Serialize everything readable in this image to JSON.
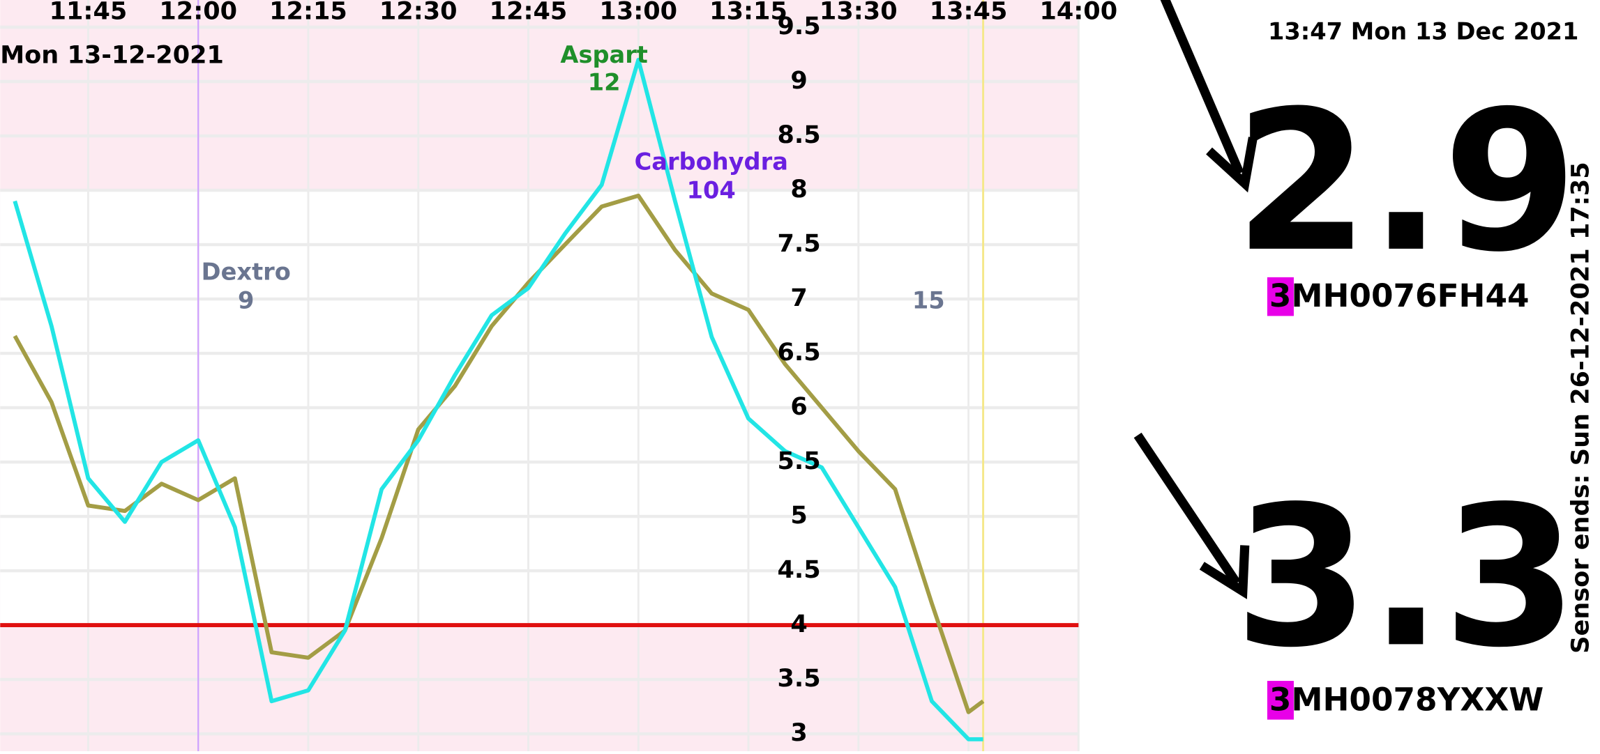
{
  "chart_data": {
    "type": "line",
    "date_label": "Mon 13-12-2021",
    "x": [
      "11:35",
      "11:40",
      "11:45",
      "11:50",
      "11:55",
      "12:00",
      "12:05",
      "12:10",
      "12:15",
      "12:20",
      "12:25",
      "12:30",
      "12:35",
      "12:40",
      "12:45",
      "12:50",
      "12:55",
      "13:00",
      "13:05",
      "13:10",
      "13:15",
      "13:20",
      "13:25",
      "13:30",
      "13:35",
      "13:40",
      "13:45",
      "13:47"
    ],
    "series": [
      {
        "color": "#a39d45",
        "values": [
          6.66,
          6.05,
          5.1,
          5.05,
          5.3,
          5.15,
          5.35,
          3.75,
          3.7,
          3.95,
          4.8,
          5.8,
          6.2,
          6.75,
          7.15,
          7.5,
          7.85,
          7.95,
          7.45,
          7.05,
          6.9,
          6.4,
          6.0,
          5.6,
          5.25,
          4.2,
          3.2,
          3.3
        ]
      },
      {
        "color": "#22e5e5",
        "values": [
          7.9,
          6.75,
          5.35,
          4.95,
          5.5,
          5.7,
          4.9,
          3.3,
          3.4,
          3.95,
          5.25,
          5.7,
          6.3,
          6.85,
          7.1,
          7.6,
          8.05,
          9.2,
          7.9,
          6.65,
          5.9,
          5.6,
          5.45,
          4.9,
          4.35,
          3.3,
          2.95,
          2.95
        ]
      }
    ],
    "xticks": [
      "11:45",
      "12:00",
      "12:15",
      "12:30",
      "12:45",
      "13:00",
      "13:15",
      "13:30",
      "13:45",
      "14:00"
    ],
    "xlim": [
      "11:33",
      "14:00"
    ],
    "ylim": [
      2.84,
      9.75
    ],
    "yticks": [
      3,
      3.5,
      4,
      4.5,
      5,
      5.5,
      6,
      6.5,
      7,
      7.5,
      8,
      8.5,
      9,
      9.5
    ],
    "target_range": [
      4,
      8
    ],
    "low_line": 4,
    "grid": true,
    "annotations": [
      {
        "label": "Aspart",
        "value": "12",
        "color": "#1f8f2a"
      },
      {
        "label": "Carbohydra",
        "value": "104",
        "color": "#6a1fe0"
      },
      {
        "label": "Dextro",
        "value": "9",
        "color": "#6a7590"
      },
      {
        "label": "",
        "value": "15",
        "color": "#6a7590"
      }
    ]
  },
  "status": {
    "time": "13:47 Mon 13 Dec 2021",
    "readings": [
      {
        "value": "2.9",
        "sensor_prefix": "3",
        "sensor_rest": "MH0076FH44"
      },
      {
        "value": "3.3",
        "sensor_prefix": "3",
        "sensor_rest": "MH0078YXXW"
      }
    ],
    "sensor_ends": "Sensor ends: Sun 26-12-2021 17:35"
  }
}
